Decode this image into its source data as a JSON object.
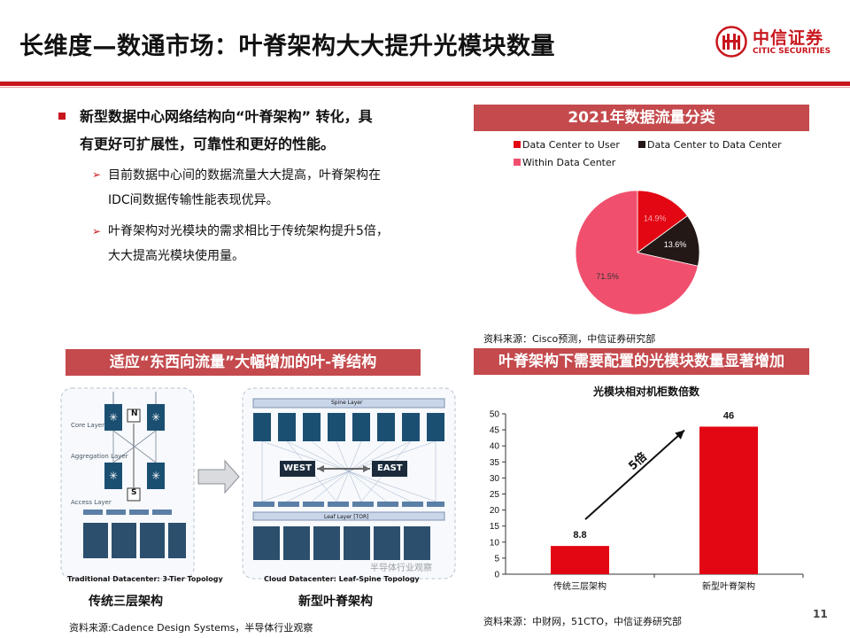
{
  "header": {
    "title": "长维度—数通市场：叶脊架构大大提升光模块数量",
    "logo_cn": "中信证券",
    "logo_en": "CITIC SECURITIES"
  },
  "bullets": {
    "main_line1": "新型数据中心网络结构向“叶脊架构” 转化，具",
    "main_line2": "有更好可扩展性，可靠性和更好的性能。",
    "sub1_line1": "目前数据中心间的数据流量大大提高，叶脊架构在",
    "sub1_line2": "IDC间数据传输性能表现优异。",
    "sub2_line1": "叶脊架构对光模块的需求相比于传统架构提升5倍，",
    "sub2_line2": "大大提高光模块使用量。"
  },
  "pie_section": {
    "title": "2021年数据流量分类",
    "source": "资料来源：Cisco预测，中信证券研究部"
  },
  "diagram_section": {
    "title": "适应“东西向流量”大幅增加的叶-脊结构",
    "core_layer": "Core Layer",
    "aggregation_layer": "Aggregation Layer",
    "access_layer": "Access Layer",
    "n_label": "N",
    "s_label": "S",
    "spine_layer": "Spine Layer",
    "leaf_layer": "Leaf Layer [TOR]",
    "west": "WEST",
    "east": "EAST",
    "left_caption": "Traditional Datacenter: 3-Tier Topology",
    "right_caption": "Cloud Datacenter: Leaf-Spine Topology",
    "watermark": "半导体行业观察",
    "left_name": "传统三层架构",
    "right_name": "新型叶脊架构",
    "source": "资料来源:Cadence Design Systems，半导体行业观察"
  },
  "bar_section": {
    "title": "叶脊架构下需要配置的光模块数量显著增加",
    "source": "资料来源：中财网，51CTO，中信证券研究部",
    "arrow_label": "5倍"
  },
  "page_number": "11",
  "colors": {
    "brand_red": "#c8161d",
    "bar_red": "#e30613",
    "section_bar": "#c44a4d",
    "pie_dark": "#231815",
    "pie_pink": "#f0506e"
  },
  "chart_data": [
    {
      "type": "pie",
      "title": "",
      "legend_position": "top-left",
      "labels": [
        "Data Center to User",
        "Data Center to Data Center",
        "Within Data Center"
      ],
      "values": [
        14.9,
        13.6,
        71.5
      ],
      "value_labels": [
        "14.9%",
        "13.6%",
        "71.5%"
      ],
      "colors": [
        "#e30613",
        "#231815",
        "#f0506e"
      ]
    },
    {
      "type": "bar",
      "title": "光模块相对机柜数倍数",
      "categories": [
        "传统三层架构",
        "新型叶脊架构"
      ],
      "values": [
        8.8,
        46
      ],
      "value_labels": [
        "8.8",
        "46"
      ],
      "ylim": [
        0,
        50
      ],
      "yticks": [
        "0",
        "5",
        "10",
        "15",
        "20",
        "25",
        "30",
        "35",
        "40",
        "45",
        "50"
      ],
      "xlabel": "",
      "ylabel": "",
      "grid": false,
      "color": "#e30613"
    }
  ]
}
